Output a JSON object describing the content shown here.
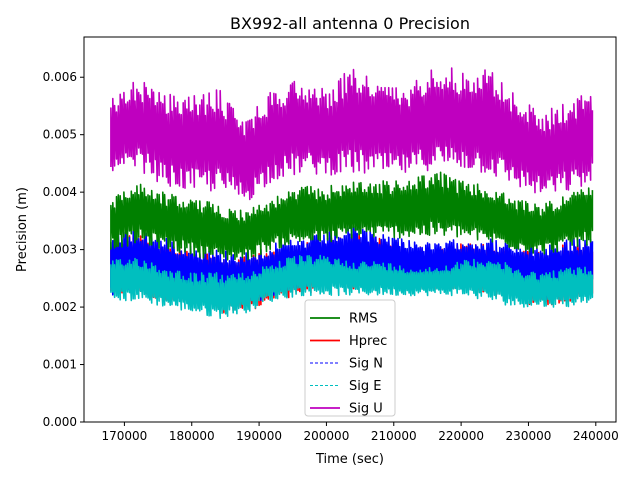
{
  "chart_data": {
    "type": "line",
    "title": "BX992-all antenna 0 Precision",
    "xlabel": "Time (sec)",
    "ylabel": "Precision (m)",
    "xlim": [
      164000,
      243000
    ],
    "ylim": [
      0.0,
      0.0067
    ],
    "xticks": [
      170000,
      180000,
      190000,
      200000,
      210000,
      220000,
      230000,
      240000
    ],
    "xtick_labels": [
      "170000",
      "180000",
      "190000",
      "200000",
      "210000",
      "220000",
      "230000",
      "240000"
    ],
    "yticks": [
      0.0,
      0.001,
      0.002,
      0.003,
      0.004,
      0.005,
      0.006
    ],
    "ytick_labels": [
      "0.000",
      "0.001",
      "0.002",
      "0.003",
      "0.004",
      "0.005",
      "0.006"
    ],
    "legend_position": "bottom-center",
    "x": [
      168000,
      172000,
      176000,
      180000,
      184000,
      188000,
      192000,
      196000,
      200000,
      204000,
      208000,
      212000,
      216000,
      220000,
      224000,
      228000,
      232000,
      236000,
      239500
    ],
    "series": [
      {
        "name": "RMS",
        "color": "#008000",
        "style": "solid",
        "low": [
          0.003,
          0.0031,
          0.003,
          0.0029,
          0.0028,
          0.0028,
          0.003,
          0.0031,
          0.0031,
          0.0032,
          0.0032,
          0.0032,
          0.0032,
          0.0032,
          0.0031,
          0.003,
          0.0029,
          0.003,
          0.0031
        ],
        "high": [
          0.0039,
          0.0042,
          0.004,
          0.0039,
          0.0038,
          0.0037,
          0.0039,
          0.0041,
          0.0041,
          0.0042,
          0.0042,
          0.0042,
          0.0044,
          0.0042,
          0.0041,
          0.0039,
          0.0038,
          0.004,
          0.0041
        ]
      },
      {
        "name": "Hprec",
        "color": "#ff0000",
        "style": "solid",
        "low": [
          0.0022,
          0.0022,
          0.0021,
          0.002,
          0.0019,
          0.0019,
          0.0021,
          0.0022,
          0.0023,
          0.0023,
          0.0023,
          0.0023,
          0.0023,
          0.0023,
          0.0022,
          0.0021,
          0.002,
          0.0021,
          0.0022
        ],
        "high": [
          0.0032,
          0.0033,
          0.0031,
          0.003,
          0.0029,
          0.0029,
          0.003,
          0.0031,
          0.0032,
          0.0033,
          0.0032,
          0.0031,
          0.003,
          0.0031,
          0.0031,
          0.003,
          0.003,
          0.0031,
          0.0031
        ]
      },
      {
        "name": "Sig N",
        "color": "#0000ff",
        "style": "dashed",
        "low": [
          0.0022,
          0.0023,
          0.0022,
          0.0021,
          0.002,
          0.002,
          0.0022,
          0.0023,
          0.0024,
          0.0024,
          0.0024,
          0.0024,
          0.0024,
          0.0024,
          0.0023,
          0.0022,
          0.0021,
          0.0022,
          0.0023
        ],
        "high": [
          0.0033,
          0.0034,
          0.0032,
          0.0031,
          0.003,
          0.003,
          0.0031,
          0.0032,
          0.0033,
          0.0034,
          0.0033,
          0.0032,
          0.0031,
          0.0032,
          0.0032,
          0.0031,
          0.0031,
          0.0032,
          0.0032
        ]
      },
      {
        "name": "Sig E",
        "color": "#00bfbf",
        "style": "dashed",
        "low": [
          0.0021,
          0.0021,
          0.002,
          0.0019,
          0.0018,
          0.0019,
          0.0021,
          0.0022,
          0.0022,
          0.0022,
          0.0022,
          0.0022,
          0.0022,
          0.0022,
          0.0021,
          0.002,
          0.002,
          0.002,
          0.0021
        ],
        "high": [
          0.0028,
          0.0029,
          0.0027,
          0.0026,
          0.0026,
          0.0026,
          0.0028,
          0.0029,
          0.0029,
          0.0028,
          0.0028,
          0.0027,
          0.0027,
          0.0028,
          0.0029,
          0.0027,
          0.0026,
          0.0027,
          0.0027
        ]
      },
      {
        "name": "Sig U",
        "color": "#bf00bf",
        "style": "solid",
        "low": [
          0.0042,
          0.0044,
          0.0041,
          0.004,
          0.004,
          0.0038,
          0.0042,
          0.0043,
          0.0043,
          0.0043,
          0.0043,
          0.0043,
          0.0044,
          0.0044,
          0.0043,
          0.0041,
          0.0039,
          0.004,
          0.0041
        ],
        "high": [
          0.0056,
          0.006,
          0.0057,
          0.0057,
          0.0058,
          0.0053,
          0.0058,
          0.006,
          0.0058,
          0.0062,
          0.0059,
          0.0058,
          0.0063,
          0.0061,
          0.0062,
          0.0057,
          0.0054,
          0.0056,
          0.0058
        ]
      }
    ]
  }
}
